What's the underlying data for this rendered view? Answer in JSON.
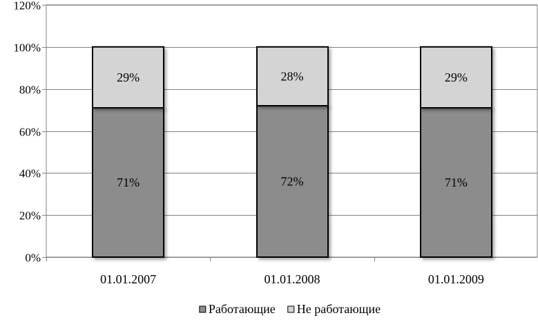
{
  "chart_data": {
    "type": "bar",
    "stacked": true,
    "percent": true,
    "categories": [
      "01.01.2007",
      "01.01.2008",
      "01.01.2009"
    ],
    "series": [
      {
        "name": "Работающие",
        "values": [
          71,
          72,
          71
        ],
        "labels": [
          "71%",
          "72%",
          "71%"
        ],
        "color": "#8c8c8c"
      },
      {
        "name": "Не работающие",
        "values": [
          29,
          28,
          29
        ],
        "labels": [
          "29%",
          "28%",
          "29%"
        ],
        "color": "#d4d4d4"
      }
    ],
    "ylim": [
      0,
      120
    ],
    "yticks": [
      0,
      20,
      40,
      60,
      80,
      100,
      120
    ],
    "ytick_labels": [
      "0%",
      "20%",
      "40%",
      "60%",
      "80%",
      "100%",
      "120%"
    ],
    "grid": true,
    "legend": "bottom",
    "title": "",
    "xlabel": "",
    "ylabel": ""
  }
}
